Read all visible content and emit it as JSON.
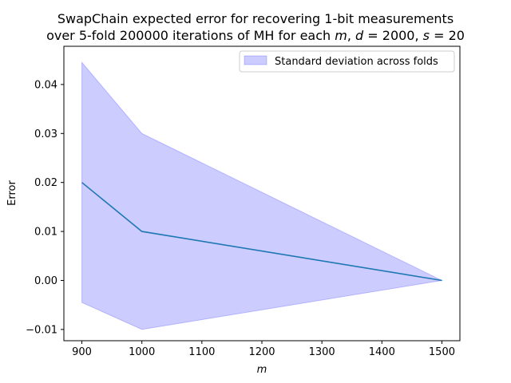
{
  "chart_data": {
    "type": "area",
    "title_line1": "SwapChain expected error for recovering 1-bit measurements",
    "title_line2_prefix": "over 5-fold 200000 iterations of MH for each ",
    "title_m": "m",
    "title_d": "d",
    "title_d_value": " = 2000, ",
    "title_s": "s",
    "title_s_value": " = 20",
    "xlabel": "m",
    "ylabel": "Error",
    "xlim": [
      870,
      1530
    ],
    "ylim": [
      -0.0123,
      0.0478
    ],
    "xticks": [
      900,
      1000,
      1100,
      1200,
      1300,
      1400,
      1500
    ],
    "xtick_labels": [
      "900",
      "1000",
      "1100",
      "1200",
      "1300",
      "1400",
      "1500"
    ],
    "yticks": [
      -0.01,
      0.0,
      0.01,
      0.02,
      0.03,
      0.04
    ],
    "ytick_labels": [
      "−0.01",
      "0.00",
      "0.01",
      "0.02",
      "0.03",
      "0.04"
    ],
    "grid": false,
    "legend_position": "top-right",
    "series": [
      {
        "x": [
          900,
          1000,
          1500
        ],
        "values": [
          0.02,
          0.01,
          0.0
        ],
        "color": "#1f77b4"
      }
    ],
    "band": {
      "name": "Standard deviation across folds",
      "x": [
        900,
        1000,
        1500
      ],
      "upper": [
        0.0445,
        0.03,
        0.0
      ],
      "lower": [
        -0.0045,
        -0.01,
        0.0
      ],
      "color": "#0000ff",
      "opacity": 0.2
    }
  }
}
